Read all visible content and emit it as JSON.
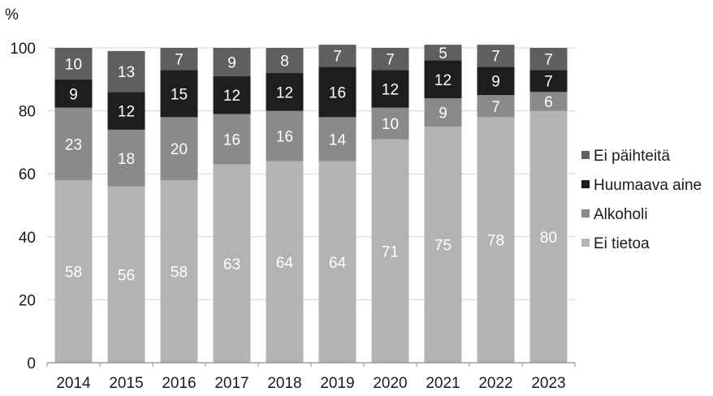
{
  "chart_data": {
    "type": "bar",
    "stacked": true,
    "y_unit_label": "%",
    "categories": [
      "2014",
      "2015",
      "2016",
      "2017",
      "2018",
      "2019",
      "2020",
      "2021",
      "2022",
      "2023"
    ],
    "series": [
      {
        "name": "Ei tietoa",
        "color": "#b3b3b3",
        "values": [
          58,
          56,
          58,
          63,
          64,
          64,
          71,
          75,
          78,
          80
        ]
      },
      {
        "name": "Alkoholi",
        "color": "#8a8a8a",
        "values": [
          23,
          18,
          20,
          16,
          16,
          14,
          10,
          9,
          7,
          6
        ]
      },
      {
        "name": "Huumaava aine",
        "color": "#1e1e1e",
        "values": [
          9,
          12,
          15,
          12,
          12,
          16,
          12,
          12,
          9,
          7
        ]
      },
      {
        "name": "Ei päihteitä",
        "color": "#5f5f5f",
        "values": [
          10,
          13,
          7,
          9,
          8,
          7,
          7,
          5,
          7,
          7
        ]
      }
    ],
    "legend_order": [
      "Ei päihteitä",
      "Huumaava aine",
      "Alkoholi",
      "Ei tietoa"
    ],
    "legend_position": "right",
    "ylim": [
      0,
      100
    ],
    "yticks": [
      0,
      20,
      40,
      60,
      80,
      100
    ],
    "grid": true
  }
}
